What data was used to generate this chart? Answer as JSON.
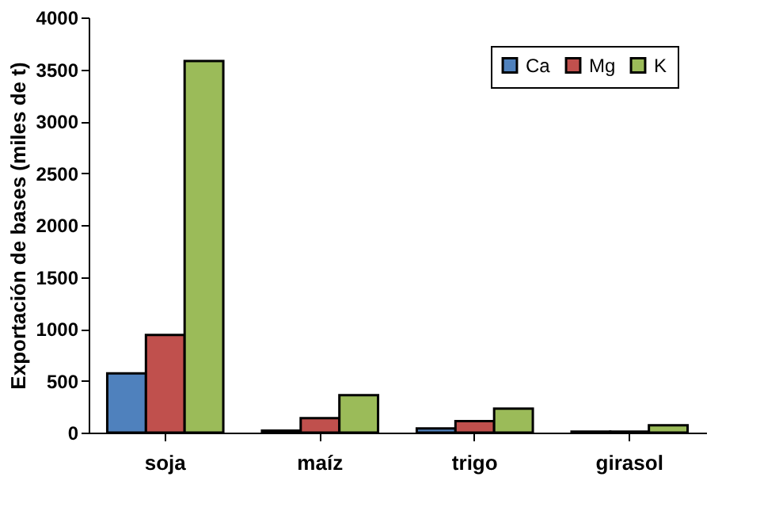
{
  "chart_data": {
    "type": "bar",
    "ylabel": "Exportación de bases (miles de t)",
    "categories": [
      "soja",
      "maíz",
      "trigo",
      "girasol"
    ],
    "series": [
      {
        "name": "Ca",
        "color": "#4f81bd",
        "values": [
          570,
          20,
          40,
          10
        ]
      },
      {
        "name": "Mg",
        "color": "#c0504d",
        "values": [
          940,
          140,
          110,
          10
        ]
      },
      {
        "name": "K",
        "color": "#9bbb59",
        "values": [
          3580,
          360,
          230,
          70
        ]
      }
    ],
    "ylim": [
      0,
      4000
    ],
    "yticks": [
      0,
      500,
      1000,
      1500,
      2000,
      2500,
      3000,
      3500,
      4000
    ],
    "grid": false,
    "legend": "top right"
  }
}
